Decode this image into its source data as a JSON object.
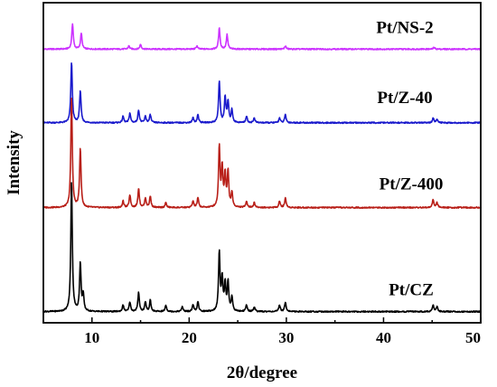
{
  "chart_data": {
    "type": "line",
    "title": "",
    "xlabel": "2θ/degree",
    "ylabel": "Intensity",
    "xlim": [
      5,
      50
    ],
    "x_ticks": [
      10,
      20,
      30,
      40,
      50
    ],
    "y_ticks": [],
    "grid": false,
    "legend": "none",
    "series": [
      {
        "name": "Pt/NS-2",
        "color": "#cc33ff",
        "baseline_fraction": 0.145,
        "peaks": [
          [
            8.0,
            0.08
          ],
          [
            8.9,
            0.05
          ],
          [
            13.8,
            0.01
          ],
          [
            15.0,
            0.015
          ],
          [
            20.8,
            0.01
          ],
          [
            23.1,
            0.065
          ],
          [
            23.9,
            0.045
          ],
          [
            29.9,
            0.01
          ],
          [
            45.2,
            0.005
          ]
        ]
      },
      {
        "name": "Pt/Z-40",
        "color": "#1a1acc",
        "baseline_fraction": 0.375,
        "peaks": [
          [
            7.9,
            0.19
          ],
          [
            8.8,
            0.1
          ],
          [
            13.2,
            0.02
          ],
          [
            13.9,
            0.03
          ],
          [
            14.8,
            0.04
          ],
          [
            15.5,
            0.02
          ],
          [
            16.0,
            0.025
          ],
          [
            20.4,
            0.015
          ],
          [
            20.9,
            0.025
          ],
          [
            23.1,
            0.13
          ],
          [
            23.7,
            0.08
          ],
          [
            24.0,
            0.065
          ],
          [
            24.4,
            0.04
          ],
          [
            25.9,
            0.02
          ],
          [
            26.7,
            0.015
          ],
          [
            29.3,
            0.015
          ],
          [
            29.9,
            0.025
          ],
          [
            45.1,
            0.015
          ],
          [
            45.5,
            0.01
          ]
        ]
      },
      {
        "name": "Pt/Z-400",
        "color": "#b81f18",
        "baseline_fraction": 0.64,
        "peaks": [
          [
            7.9,
            0.345
          ],
          [
            8.8,
            0.185
          ],
          [
            13.2,
            0.02
          ],
          [
            13.9,
            0.04
          ],
          [
            14.8,
            0.06
          ],
          [
            15.5,
            0.03
          ],
          [
            16.0,
            0.035
          ],
          [
            17.6,
            0.015
          ],
          [
            20.4,
            0.02
          ],
          [
            20.9,
            0.03
          ],
          [
            23.1,
            0.19
          ],
          [
            23.4,
            0.12
          ],
          [
            23.7,
            0.1
          ],
          [
            24.0,
            0.11
          ],
          [
            24.4,
            0.045
          ],
          [
            25.9,
            0.02
          ],
          [
            26.7,
            0.015
          ],
          [
            29.3,
            0.02
          ],
          [
            29.9,
            0.03
          ],
          [
            45.1,
            0.025
          ],
          [
            45.5,
            0.015
          ]
        ]
      },
      {
        "name": "Pt/CZ",
        "color": "#000000",
        "baseline_fraction": 0.965,
        "peaks": [
          [
            7.9,
            0.41
          ],
          [
            8.8,
            0.15
          ],
          [
            9.1,
            0.05
          ],
          [
            13.2,
            0.02
          ],
          [
            13.9,
            0.03
          ],
          [
            14.8,
            0.06
          ],
          [
            15.5,
            0.03
          ],
          [
            16.0,
            0.035
          ],
          [
            17.6,
            0.02
          ],
          [
            19.3,
            0.015
          ],
          [
            20.4,
            0.02
          ],
          [
            20.9,
            0.03
          ],
          [
            23.1,
            0.185
          ],
          [
            23.4,
            0.1
          ],
          [
            23.7,
            0.085
          ],
          [
            24.0,
            0.09
          ],
          [
            24.4,
            0.045
          ],
          [
            25.9,
            0.02
          ],
          [
            26.7,
            0.015
          ],
          [
            29.3,
            0.02
          ],
          [
            29.9,
            0.03
          ],
          [
            45.1,
            0.02
          ],
          [
            45.5,
            0.015
          ]
        ]
      }
    ],
    "annotations": [
      "Pt/NS-2",
      "Pt/Z-40",
      "Pt/Z-400",
      "Pt/CZ"
    ]
  }
}
